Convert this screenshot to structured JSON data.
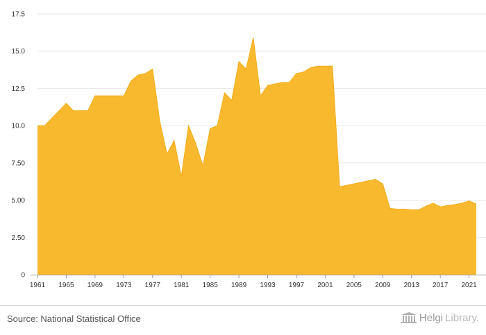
{
  "chart_data": {
    "type": "area",
    "title": "",
    "xlabel": "",
    "ylabel": "",
    "color": "#f9b92f",
    "grid": "horizontal",
    "xlim": [
      1961,
      2022
    ],
    "ylim": [
      0,
      17.5
    ],
    "y_ticks": [
      "0",
      "2.50",
      "5.00",
      "7.50",
      "10.0",
      "12.5",
      "15.0",
      "17.5"
    ],
    "y_tick_values": [
      0,
      2.5,
      5,
      7.5,
      10,
      12.5,
      15,
      17.5
    ],
    "x_ticks": [
      "1961",
      "1965",
      "1969",
      "1973",
      "1977",
      "1981",
      "1985",
      "1989",
      "1993",
      "1997",
      "2001",
      "2005",
      "2009",
      "2013",
      "2017",
      "2021"
    ],
    "x": [
      1961,
      1962,
      1963,
      1964,
      1965,
      1966,
      1967,
      1968,
      1969,
      1970,
      1971,
      1972,
      1973,
      1974,
      1975,
      1976,
      1977,
      1978,
      1979,
      1980,
      1981,
      1982,
      1983,
      1984,
      1985,
      1986,
      1987,
      1988,
      1989,
      1990,
      1991,
      1992,
      1993,
      1994,
      1995,
      1996,
      1997,
      1998,
      1999,
      2000,
      2001,
      2002,
      2003,
      2004,
      2005,
      2006,
      2007,
      2008,
      2009,
      2010,
      2011,
      2012,
      2013,
      2014,
      2015,
      2016,
      2017,
      2018,
      2019,
      2020,
      2021,
      2022
    ],
    "values": [
      10.0,
      10.0,
      10.5,
      11.0,
      11.5,
      11.0,
      11.0,
      11.0,
      12.0,
      12.0,
      12.0,
      12.0,
      12.0,
      13.0,
      13.4,
      13.5,
      13.8,
      10.3,
      8.1,
      9.0,
      6.6,
      10.0,
      8.8,
      7.3,
      9.8,
      10.0,
      12.2,
      11.7,
      14.3,
      13.8,
      15.9,
      12.0,
      12.7,
      12.8,
      12.9,
      12.9,
      13.5,
      13.6,
      13.9,
      14.0,
      14.0,
      14.0,
      5.9,
      6.0,
      6.1,
      6.2,
      6.3,
      6.4,
      6.1,
      4.45,
      4.4,
      4.4,
      4.35,
      4.35,
      4.6,
      4.8,
      4.55,
      4.65,
      4.7,
      4.8,
      4.95,
      4.75
    ]
  },
  "footer": {
    "source": "Source: National Statistical Office",
    "brand_part1": "Helgi",
    "brand_part2": "Library."
  }
}
